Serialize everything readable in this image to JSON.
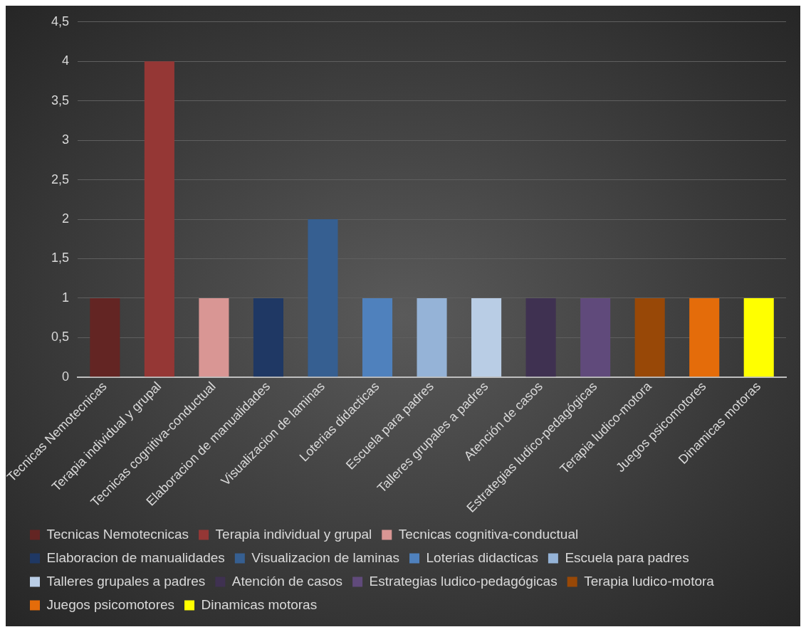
{
  "chart_data": {
    "type": "bar",
    "categories": [
      "Tecnicas Nemotecnicas",
      "Terapia individual y grupal",
      "Tecnicas cognitiva-conductual",
      "Elaboracion de manualidades",
      "Visualizacion de laminas",
      "Loterias didacticas",
      "Escuela para padres",
      "Talleres grupales a padres",
      "Atención de casos",
      "Estrategias ludico-pedagógicas",
      "Terapia ludico-motora",
      "Juegos psicomotores",
      "Dinamicas motoras"
    ],
    "series": [
      {
        "name": "Tecnicas Nemotecnicas",
        "color": "#632523",
        "values": [
          1,
          null,
          null,
          null,
          null,
          null,
          null,
          null,
          null,
          null,
          null,
          null,
          null
        ]
      },
      {
        "name": "Terapia individual y grupal",
        "color": "#953735",
        "values": [
          null,
          4,
          null,
          null,
          null,
          null,
          null,
          null,
          null,
          null,
          null,
          null,
          null
        ]
      },
      {
        "name": "Tecnicas cognitiva-conductual",
        "color": "#d99694",
        "values": [
          null,
          null,
          1,
          null,
          null,
          null,
          null,
          null,
          null,
          null,
          null,
          null,
          null
        ]
      },
      {
        "name": "Elaboracion de manualidades",
        "color": "#1f3864",
        "values": [
          null,
          null,
          null,
          1,
          null,
          null,
          null,
          null,
          null,
          null,
          null,
          null,
          null
        ]
      },
      {
        "name": "Visualizacion de laminas",
        "color": "#365f91",
        "values": [
          null,
          null,
          null,
          null,
          2,
          null,
          null,
          null,
          null,
          null,
          null,
          null,
          null
        ]
      },
      {
        "name": "Loterias didacticas",
        "color": "#4f81bd",
        "values": [
          null,
          null,
          null,
          null,
          null,
          1,
          null,
          null,
          null,
          null,
          null,
          null,
          null
        ]
      },
      {
        "name": "Escuela para padres",
        "color": "#95b3d7",
        "values": [
          null,
          null,
          null,
          null,
          null,
          null,
          1,
          null,
          null,
          null,
          null,
          null,
          null
        ]
      },
      {
        "name": "Talleres grupales a padres",
        "color": "#b9cde5",
        "values": [
          null,
          null,
          null,
          null,
          null,
          null,
          null,
          1,
          null,
          null,
          null,
          null,
          null
        ]
      },
      {
        "name": "Atención de casos",
        "color": "#3f3151",
        "values": [
          null,
          null,
          null,
          null,
          null,
          null,
          null,
          null,
          1,
          null,
          null,
          null,
          null
        ]
      },
      {
        "name": "Estrategias ludico-pedagógicas",
        "color": "#604a7b",
        "values": [
          null,
          null,
          null,
          null,
          null,
          null,
          null,
          null,
          null,
          1,
          null,
          null,
          null
        ]
      },
      {
        "name": "Terapia ludico-motora",
        "color": "#984807",
        "values": [
          null,
          null,
          null,
          null,
          null,
          null,
          null,
          null,
          null,
          null,
          1,
          null,
          null
        ]
      },
      {
        "name": "Juegos psicomotores",
        "color": "#e46c0a",
        "values": [
          null,
          null,
          null,
          null,
          null,
          null,
          null,
          null,
          null,
          null,
          null,
          1,
          null
        ]
      },
      {
        "name": "Dinamicas motoras",
        "color": "#ffff00",
        "values": [
          null,
          null,
          null,
          null,
          null,
          null,
          null,
          null,
          null,
          null,
          null,
          null,
          1
        ]
      }
    ],
    "ylim": [
      0,
      4.5
    ],
    "yticks": [
      0,
      {
        "value": 0.5,
        "label": "0,5"
      },
      1,
      {
        "value": 1.5,
        "label": "1,5"
      },
      2,
      {
        "value": 2.5,
        "label": "2,5"
      },
      3,
      {
        "value": 3.5,
        "label": "3,5"
      },
      4,
      {
        "value": 4.5,
        "label": "4,5"
      }
    ],
    "grid": "y",
    "legend": "bottom"
  }
}
